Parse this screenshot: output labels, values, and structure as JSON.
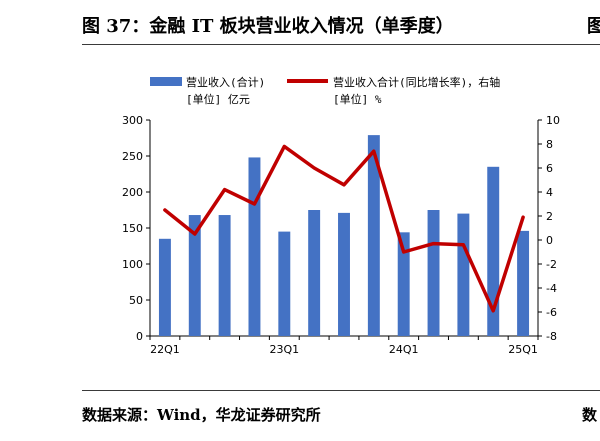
{
  "page": {
    "title": "图 37：金融 IT 板块营业收入情况（单季度）",
    "right_edge_title": "图",
    "source": "数据来源：Wind，华龙证券研究所",
    "right_edge_source": "数"
  },
  "colors": {
    "bar": "#4472C4",
    "line": "#C00000",
    "axis": "#000000"
  },
  "chart_data": {
    "type": "bar",
    "categories": [
      "22Q1",
      "22Q2",
      "22Q3",
      "22Q4",
      "23Q1",
      "23Q2",
      "23Q3",
      "23Q4",
      "24Q1",
      "24Q2",
      "24Q3",
      "24Q4",
      "25Q1"
    ],
    "x_tick_labels": [
      "22Q1",
      "23Q1",
      "24Q1",
      "25Q1"
    ],
    "series": [
      {
        "name": "营业收入(合计)",
        "unit_label": "[单位] 亿元",
        "type": "bar",
        "axis": "left",
        "values": [
          135,
          168,
          168,
          248,
          145,
          175,
          171,
          279,
          144,
          175,
          170,
          235,
          146
        ]
      },
      {
        "name": "营业收入合计(同比增长率)，右轴",
        "unit_label": "[单位] %",
        "type": "line",
        "axis": "right",
        "values": [
          2.5,
          0.5,
          4.2,
          3.0,
          7.8,
          6.0,
          4.6,
          7.4,
          -1.0,
          -0.3,
          -0.4,
          -5.9,
          1.9
        ]
      }
    ],
    "y_left": {
      "lim": [
        0,
        300
      ],
      "ticks": [
        0,
        50,
        100,
        150,
        200,
        250,
        300
      ]
    },
    "y_right": {
      "lim": [
        -8,
        10
      ],
      "ticks": [
        -8,
        -6,
        -4,
        -2,
        0,
        2,
        4,
        6,
        8,
        10
      ]
    },
    "legend_position": "top",
    "grid": false
  }
}
